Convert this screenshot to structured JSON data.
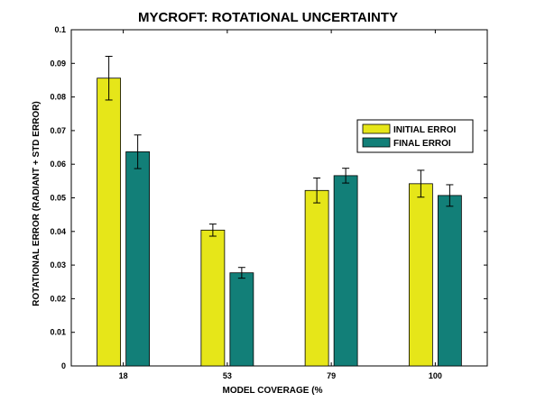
{
  "chart_data": {
    "type": "bar",
    "title": "MYCROFT: ROTATIONAL UNCERTAINTY",
    "xlabel": "MODEL COVERAGE (%",
    "ylabel": "ROTATIONAL ERROR (RADIANT + STD ERROR)",
    "categories": [
      "18",
      "53",
      "79",
      "100"
    ],
    "ylim": [
      0,
      0.1
    ],
    "yticks": [
      "0",
      "0.01",
      "0.02",
      "0.03",
      "0.04",
      "0.05",
      "0.06",
      "0.07",
      "0.08",
      "0.09",
      "0.1"
    ],
    "series": [
      {
        "name": "INITIAL ERROI",
        "color": "#e6e619",
        "values": [
          0.0856,
          0.0404,
          0.0522,
          0.0542
        ],
        "errors": [
          0.0065,
          0.0018,
          0.0037,
          0.004
        ]
      },
      {
        "name": "FINAL ERROI",
        "color": "#127f78",
        "values": [
          0.0637,
          0.0277,
          0.0566,
          0.0507
        ],
        "errors": [
          0.005,
          0.0016,
          0.0022,
          0.0032
        ]
      }
    ],
    "legend_position": "right",
    "grid": false
  }
}
